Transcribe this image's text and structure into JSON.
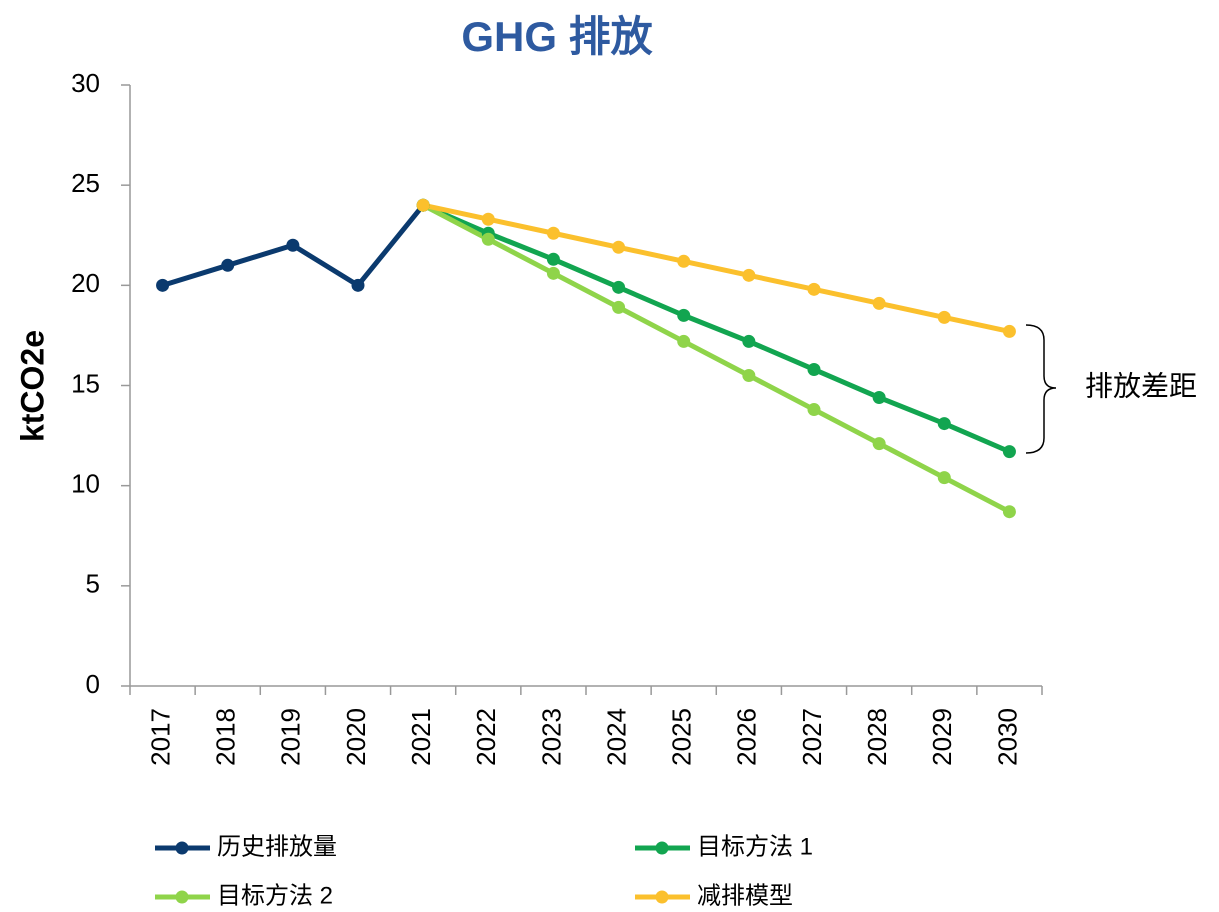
{
  "chart_data": {
    "type": "line",
    "title": "GHG 排放",
    "ylabel": "ktCO2e",
    "annotation": "排放差距",
    "categories": [
      "2017",
      "2018",
      "2019",
      "2020",
      "2021",
      "2022",
      "2023",
      "2024",
      "2025",
      "2026",
      "2027",
      "2028",
      "2029",
      "2030"
    ],
    "series": [
      {
        "name": "历史排放量",
        "color": "#0b3a6e",
        "values": [
          20,
          21,
          22,
          20,
          24,
          null,
          null,
          null,
          null,
          null,
          null,
          null,
          null,
          null
        ]
      },
      {
        "name": "目标方法 1",
        "color": "#12a550",
        "values": [
          null,
          null,
          null,
          null,
          24,
          22.6,
          21.3,
          19.9,
          18.5,
          17.2,
          15.8,
          14.4,
          13.1,
          11.7
        ]
      },
      {
        "name": "目标方法 2",
        "color": "#8fd44a",
        "values": [
          null,
          null,
          null,
          null,
          24,
          22.3,
          20.6,
          18.9,
          17.2,
          15.5,
          13.8,
          12.1,
          10.4,
          8.7
        ]
      },
      {
        "name": "减排模型",
        "color": "#fbc02d",
        "values": [
          null,
          null,
          null,
          null,
          24,
          23.3,
          22.6,
          21.9,
          21.2,
          20.5,
          19.8,
          19.1,
          18.4,
          17.7
        ]
      }
    ],
    "ylim": [
      0,
      30
    ],
    "yticks": [
      0,
      5,
      10,
      15,
      20,
      25,
      30
    ],
    "grid": false,
    "legend": "bottom"
  }
}
